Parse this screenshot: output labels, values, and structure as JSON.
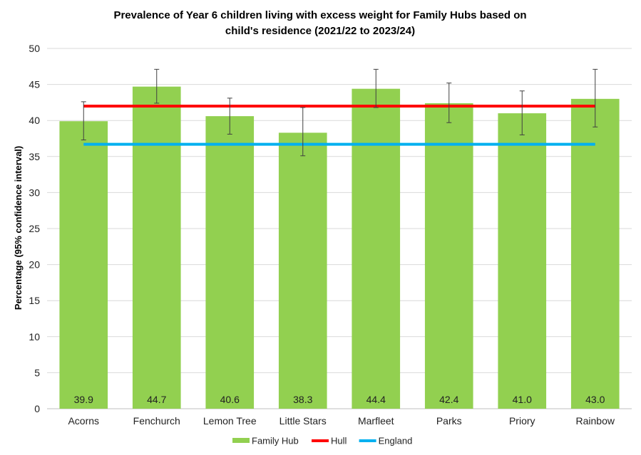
{
  "chart_data": {
    "type": "bar",
    "title_line1": "Prevalence of Year 6 children living with excess weight for Family Hubs based on",
    "title_line2": "child's residence (2021/22 to 2023/24)",
    "ylabel": "Percentage (95% confidence interval)",
    "xlabel": "",
    "ylim": [
      0,
      50
    ],
    "yticks": [
      "0",
      "5",
      "10",
      "15",
      "20",
      "25",
      "30",
      "35",
      "40",
      "45",
      "50"
    ],
    "categories": [
      "Acorns",
      "Fenchurch",
      "Lemon Tree",
      "Little Stars",
      "Marfleet",
      "Parks",
      "Priory",
      "Rainbow"
    ],
    "series": [
      {
        "name": "Family Hub",
        "values": [
          39.9,
          44.7,
          40.6,
          38.3,
          44.4,
          42.4,
          41.0,
          43.0
        ],
        "labels": [
          "39.9",
          "44.7",
          "40.6",
          "38.3",
          "44.4",
          "42.4",
          "41.0",
          "43.0"
        ],
        "ci_lower": [
          37.3,
          42.4,
          38.1,
          35.1,
          41.8,
          39.7,
          38.0,
          39.1
        ],
        "ci_upper": [
          42.6,
          47.1,
          43.1,
          41.8,
          47.1,
          45.2,
          44.1,
          47.1
        ],
        "color": "#92d050"
      }
    ],
    "reference_lines": [
      {
        "name": "Hull",
        "value": 42.0,
        "color": "#ff0000"
      },
      {
        "name": "England",
        "value": 36.7,
        "color": "#00b0f0"
      }
    ],
    "legend": [
      "Family Hub",
      "Hull",
      "England"
    ],
    "legend_position": "bottom",
    "grid": true
  }
}
